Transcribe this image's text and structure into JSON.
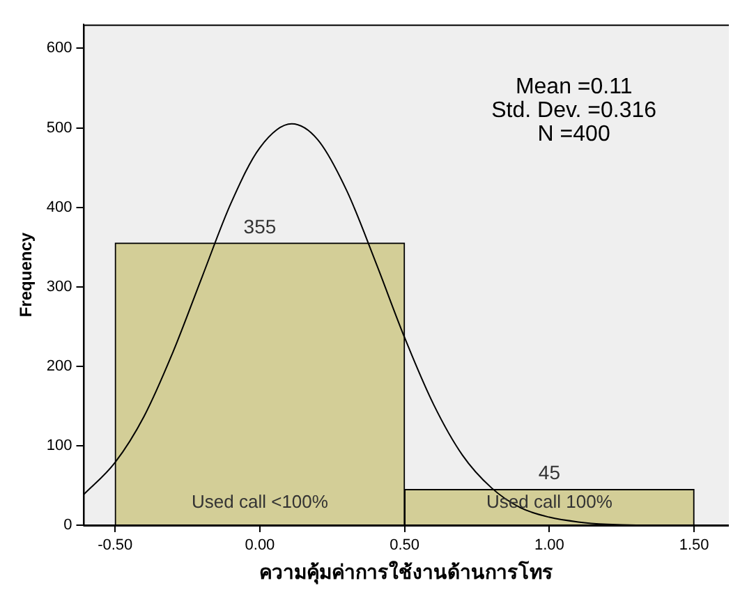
{
  "chart_data": {
    "type": "histogram",
    "xlabel": "ความคุ้มค่าการใช้งานด้านการโทร",
    "ylabel": "Frequency",
    "bins": [
      -0.5,
      0.5,
      1.5
    ],
    "values": [
      355,
      45
    ],
    "color": "#d3ce97",
    "series": [
      {
        "type": "line",
        "color": "#000000",
        "x": [
          -0.61,
          -0.5,
          -0.4,
          -0.3,
          -0.2,
          -0.1,
          0,
          0.11,
          0.2,
          0.3,
          0.4,
          0.5,
          0.6,
          0.7,
          0.8,
          0.9,
          1.0,
          1.1,
          1.2,
          1.3,
          1.4,
          1.5,
          1.62
        ],
        "values": [
          38,
          79,
          137,
          218,
          312,
          405,
          475,
          505,
          485,
          421,
          331,
          236,
          152,
          88,
          47,
          22,
          10,
          4,
          1,
          0,
          0,
          0,
          0
        ]
      }
    ],
    "xlim": [
      -0.61,
      1.62
    ],
    "ylim": [
      0,
      630
    ],
    "xticks": [
      {
        "value": -0.5,
        "label": "-0.50"
      },
      {
        "value": 0,
        "label": "0.00"
      },
      {
        "value": 0.5,
        "label": "0.50"
      },
      {
        "value": 1,
        "label": "1.00"
      },
      {
        "value": 1.5,
        "label": "1.50"
      }
    ],
    "yticks": [
      0,
      100,
      200,
      300,
      400,
      500,
      600
    ],
    "grid": false,
    "legend": false,
    "marker": "none",
    "line_style": "solid",
    "value_labels": [
      "355",
      "45"
    ],
    "annotations": [
      "Used call <100%",
      "Used call 100%",
      "Mean =0.11\nStd. Dev. =0.316\nN =400"
    ]
  }
}
